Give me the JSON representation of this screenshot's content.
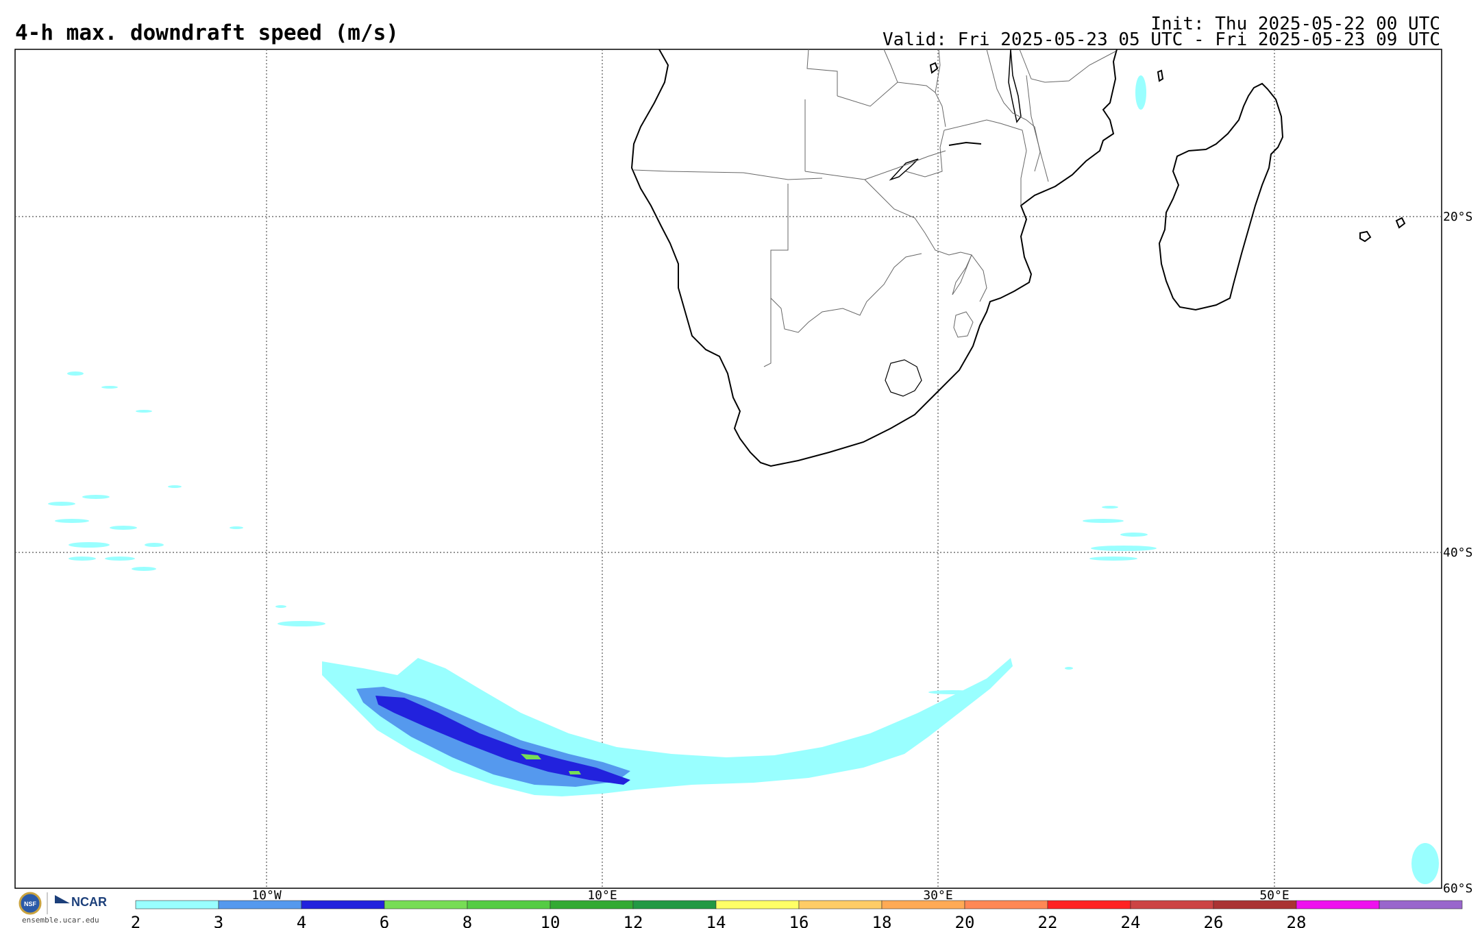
{
  "header": {
    "title": "4-h max. downdraft speed (m/s)",
    "init": "Init: Thu 2025-05-22 00 UTC",
    "valid": "Valid: Fri 2025-05-23 05 UTC - Fri 2025-05-23 09 UTC"
  },
  "map": {
    "lon_labels": [
      "10°W",
      "10°E",
      "30°E",
      "50°E"
    ],
    "lat_labels": [
      "20°S",
      "40°S",
      "60°S"
    ]
  },
  "colorbar": {
    "ticks": [
      "2",
      "3",
      "4",
      "6",
      "8",
      "10",
      "12",
      "14",
      "16",
      "18",
      "20",
      "22",
      "24",
      "26",
      "28"
    ],
    "colors": [
      "#99ffff",
      "#5599ee",
      "#2222dd",
      "#77dd55",
      "#55cc44",
      "#33aa33",
      "#229944",
      "#ffff66",
      "#ffcc66",
      "#ffaa55",
      "#ff8855",
      "#ff2222",
      "#cc4444",
      "#aa3333",
      "#ee11ee",
      "#9966cc"
    ]
  },
  "footer": {
    "nsf_label": "NSF",
    "ncar_label": "NCAR",
    "url": "ensemble.ucar.edu"
  }
}
